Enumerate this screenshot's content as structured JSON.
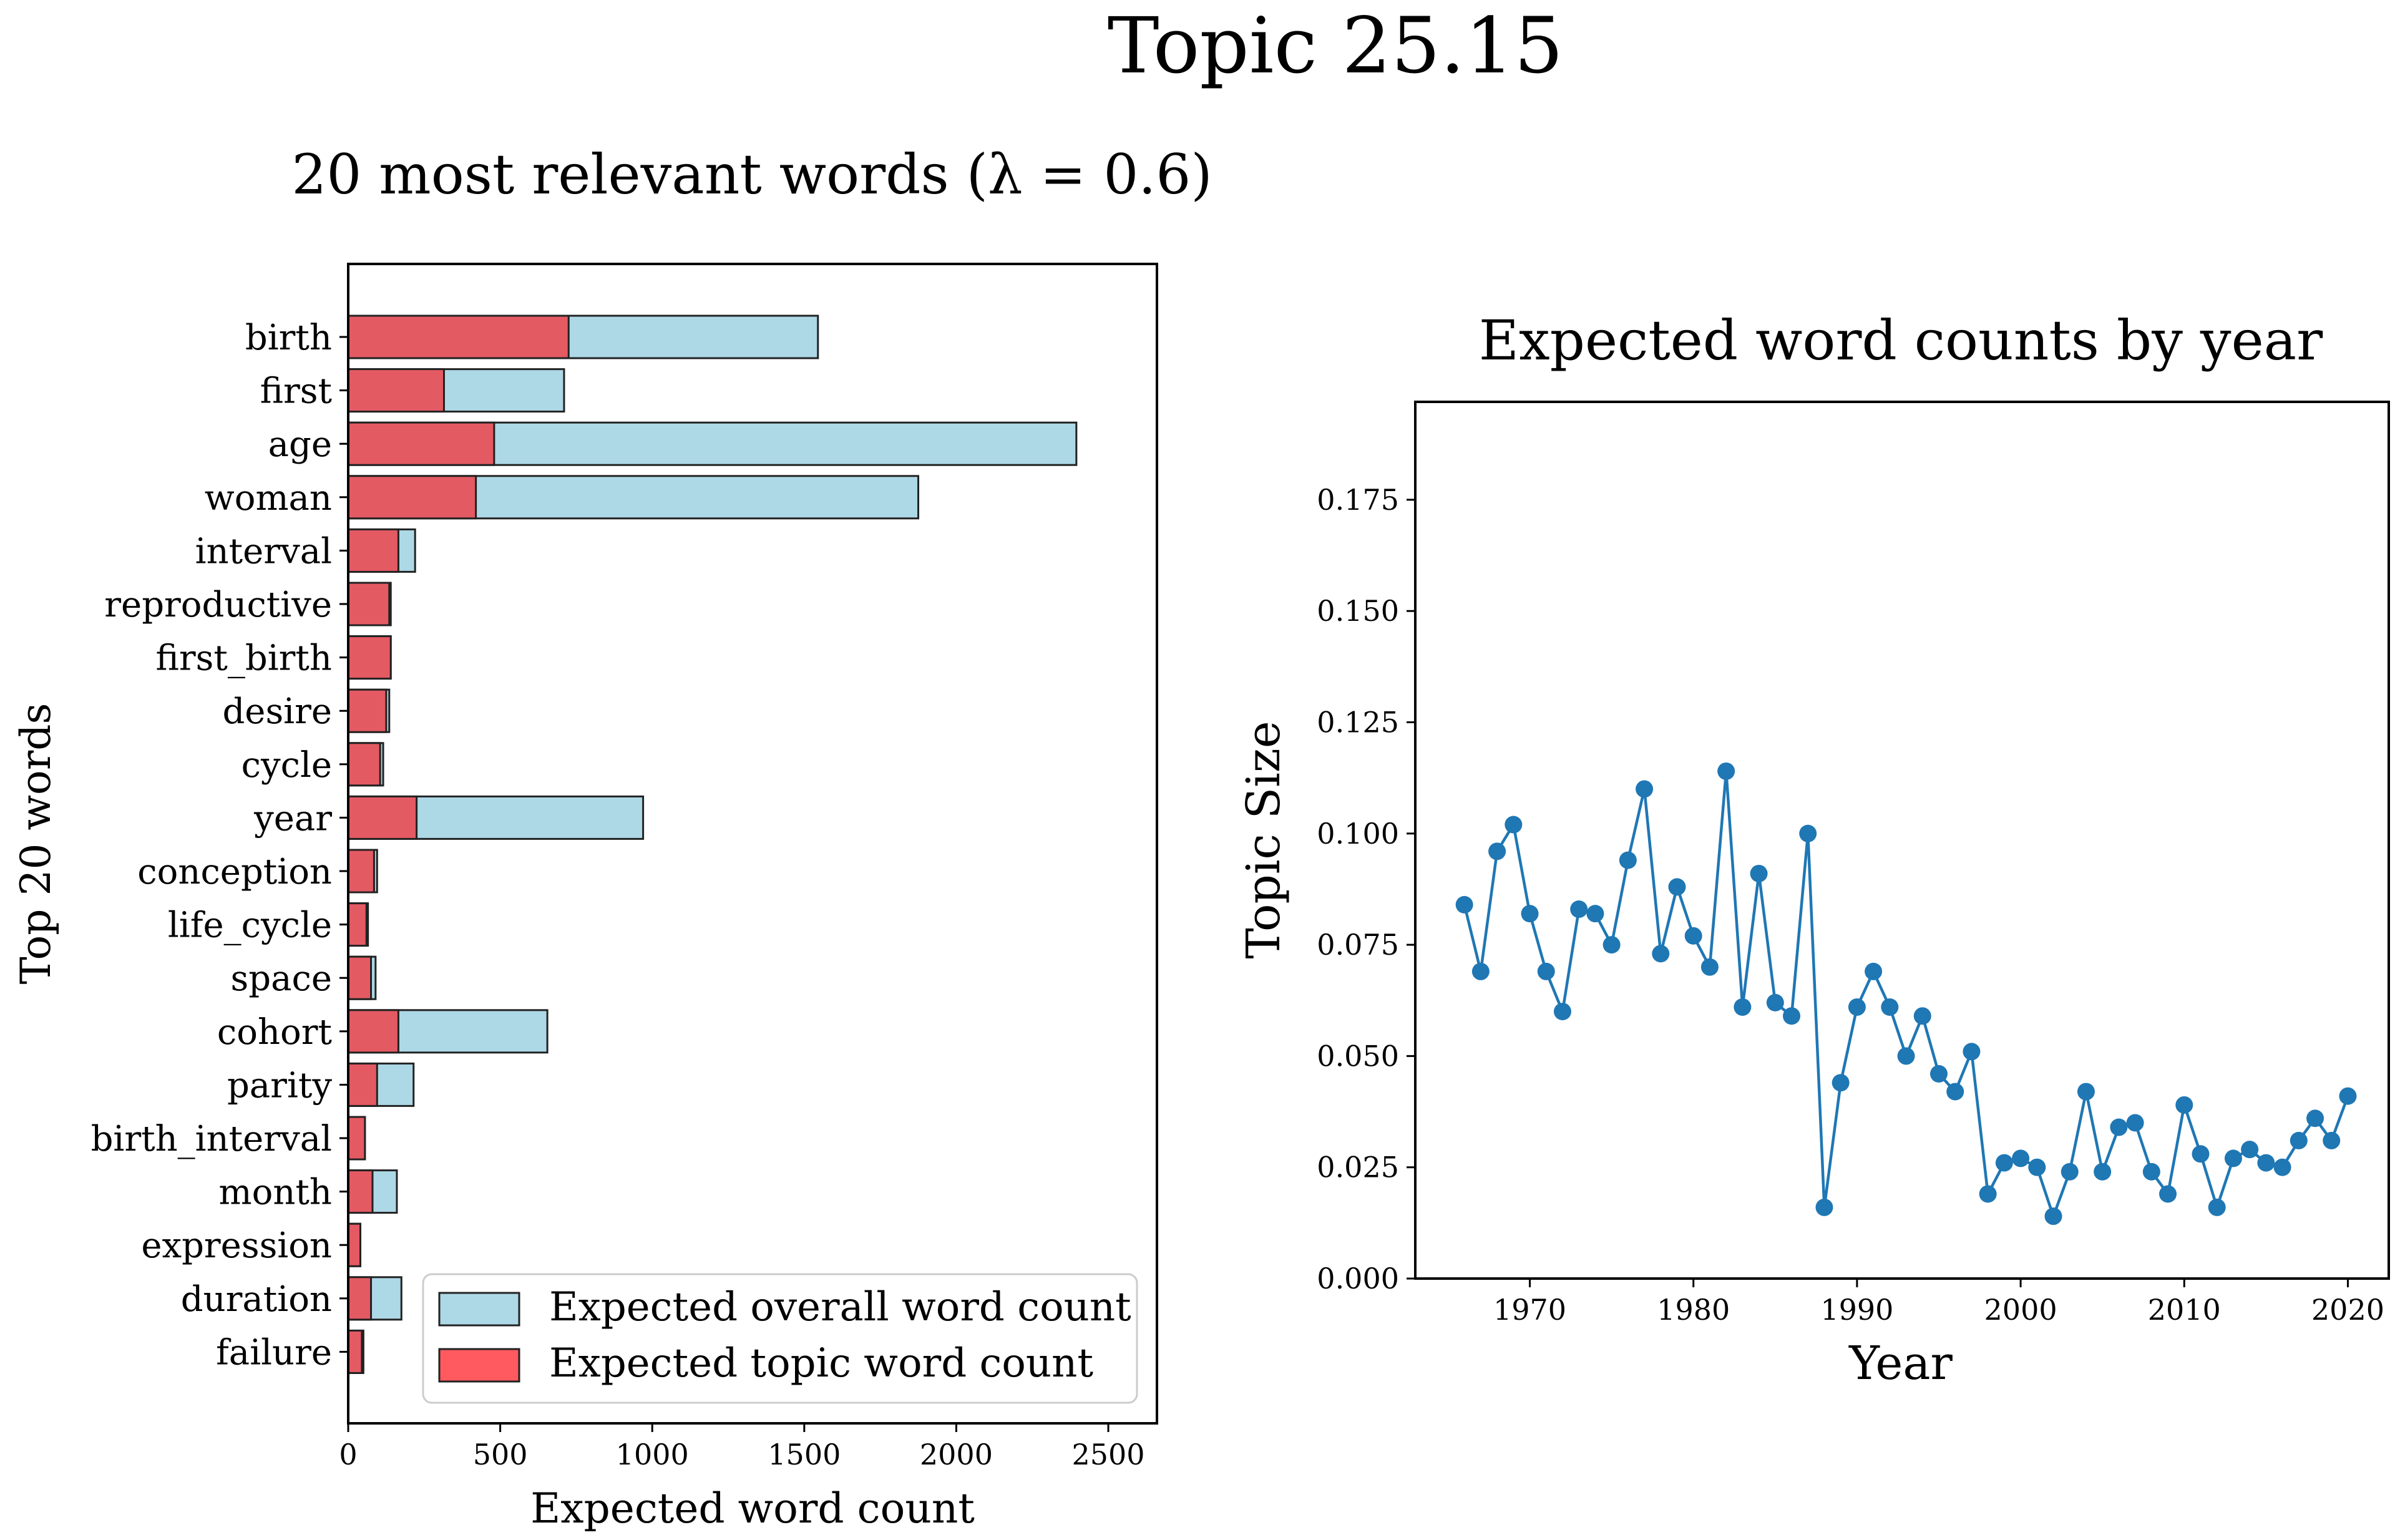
{
  "figure": {
    "suptitle": "Topic 25.15"
  },
  "colors": {
    "overall_bar": "#add8e6",
    "topic_bar": "#ff5a5f",
    "topic_bar_display": "#e45a63",
    "bar_edge": "#222222",
    "line": "#1f77b4"
  },
  "chart_data": [
    {
      "type": "bar",
      "orientation": "horizontal",
      "title": "20 most relevant words (λ = 0.6)",
      "xlabel": "Expected word count",
      "ylabel": "Top 20 words",
      "xlim": [
        0,
        2660
      ],
      "xticks": [
        0,
        500,
        1000,
        1500,
        2000,
        2500
      ],
      "xtick_labels": [
        "0",
        "500",
        "1000",
        "1500",
        "2000",
        "2500"
      ],
      "categories": [
        "birth",
        "first",
        "age",
        "woman",
        "interval",
        "reproductive",
        "first_birth",
        "desire",
        "cycle",
        "year",
        "conception",
        "life_cycle",
        "space",
        "cohort",
        "parity",
        "birth_interval",
        "month",
        "expression",
        "duration",
        "failure"
      ],
      "series": [
        {
          "name": "Expected overall word count",
          "values": [
            1545,
            710,
            2395,
            1875,
            220,
            140,
            140,
            135,
            115,
            970,
            95,
            65,
            90,
            655,
            215,
            55,
            160,
            40,
            175,
            50
          ]
        },
        {
          "name": "Expected topic word count",
          "values": [
            725,
            315,
            480,
            420,
            165,
            135,
            140,
            125,
            105,
            225,
            85,
            60,
            75,
            165,
            95,
            55,
            80,
            40,
            75,
            45
          ]
        }
      ],
      "legend_position": "lower-right",
      "grid": false
    },
    {
      "type": "line",
      "title": "Expected word counts by year",
      "xlabel": "Year",
      "ylabel": "Topic Size",
      "xlim": [
        1963,
        2022.5
      ],
      "ylim": [
        0,
        0.197
      ],
      "xticks": [
        1970,
        1980,
        1990,
        2000,
        2010,
        2020
      ],
      "xtick_labels": [
        "1970",
        "1980",
        "1990",
        "2000",
        "2010",
        "2020"
      ],
      "yticks": [
        0,
        0.025,
        0.05,
        0.075,
        0.1,
        0.125,
        0.15,
        0.175
      ],
      "ytick_labels": [
        "0.000",
        "0.025",
        "0.050",
        "0.075",
        "0.100",
        "0.125",
        "0.150",
        "0.175"
      ],
      "x": [
        1966,
        1967,
        1968,
        1969,
        1970,
        1971,
        1972,
        1973,
        1974,
        1975,
        1976,
        1977,
        1978,
        1979,
        1980,
        1981,
        1982,
        1983,
        1984,
        1985,
        1986,
        1987,
        1988,
        1989,
        1990,
        1991,
        1992,
        1993,
        1994,
        1995,
        1996,
        1997,
        1998,
        1999,
        2000,
        2001,
        2002,
        2003,
        2004,
        2005,
        2006,
        2007,
        2008,
        2009,
        2010,
        2011,
        2012,
        2013,
        2014,
        2015,
        2016,
        2017,
        2018,
        2019,
        2020
      ],
      "y": [
        0.084,
        0.069,
        0.096,
        0.102,
        0.082,
        0.069,
        0.06,
        0.083,
        0.082,
        0.075,
        0.094,
        0.11,
        0.073,
        0.088,
        0.077,
        0.07,
        0.114,
        0.061,
        0.091,
        0.062,
        0.059,
        0.1,
        0.016,
        0.044,
        0.061,
        0.069,
        0.061,
        0.05,
        0.059,
        0.046,
        0.042,
        0.051,
        0.019,
        0.026,
        0.027,
        0.025,
        0.014,
        0.024,
        0.042,
        0.024,
        0.034,
        0.035,
        0.024,
        0.019,
        0.039,
        0.028,
        0.016,
        0.027,
        0.029,
        0.026,
        0.025,
        0.031,
        0.036,
        0.031,
        0.041
      ],
      "markers": true,
      "grid": false
    }
  ]
}
